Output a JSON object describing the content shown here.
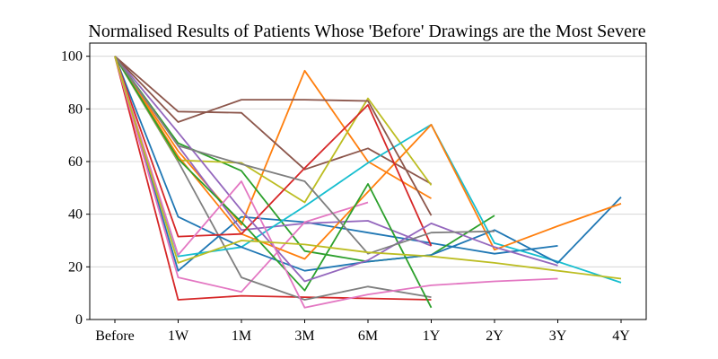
{
  "chart_data": {
    "type": "line",
    "title": "Normalised Results of Patients Whose 'Before' Drawings are the Most Severe",
    "xlabel": "",
    "ylabel": "",
    "categories": [
      "Before",
      "1W",
      "1M",
      "3M",
      "6M",
      "1Y",
      "2Y",
      "3Y",
      "4Y"
    ],
    "ylim": [
      0,
      105
    ],
    "yticks": [
      0,
      20,
      40,
      60,
      80,
      100
    ],
    "grid": "horizontal",
    "legend": "none",
    "series": [
      {
        "color": "#1f77b4",
        "values": [
          100,
          18.5,
          39,
          37,
          33,
          29,
          25,
          28,
          null
        ]
      },
      {
        "color": "#ff7f0e",
        "values": [
          100,
          64,
          36,
          94.5,
          60,
          46,
          null,
          null,
          null
        ]
      },
      {
        "color": "#2ca02c",
        "values": [
          100,
          67,
          56.5,
          26,
          22,
          24.5,
          39.5,
          null,
          null
        ]
      },
      {
        "color": "#d62728",
        "values": [
          100,
          7.5,
          9,
          8.5,
          8,
          7.5,
          null,
          null,
          null
        ]
      },
      {
        "color": "#9467bd",
        "values": [
          100,
          66,
          34,
          36.5,
          37.5,
          28,
          null,
          null,
          null
        ]
      },
      {
        "color": "#8c564b",
        "values": [
          100,
          79,
          78.5,
          57,
          65,
          51.5,
          null,
          null,
          null
        ]
      },
      {
        "color": "#e377c2",
        "values": [
          100,
          16,
          10.5,
          37,
          44.5,
          null,
          null,
          null,
          null
        ]
      },
      {
        "color": "#7f7f7f",
        "values": [
          100,
          60,
          16,
          7.5,
          12.5,
          8.5,
          null,
          null,
          null
        ]
      },
      {
        "color": "#bcbd22",
        "values": [
          100,
          60.5,
          59.5,
          44.5,
          84,
          51,
          null,
          null,
          null
        ]
      },
      {
        "color": "#17becf",
        "values": [
          100,
          24,
          27.5,
          43,
          59.5,
          74,
          29,
          22,
          14
        ]
      },
      {
        "color": "#1f77b4",
        "values": [
          100,
          39,
          27.5,
          18.5,
          22,
          24.5,
          34,
          21.5,
          46.5
        ]
      },
      {
        "color": "#ff7f0e",
        "values": [
          100,
          62,
          32.5,
          23,
          48.5,
          74,
          26.5,
          35.5,
          44
        ]
      },
      {
        "color": "#2ca02c",
        "values": [
          100,
          61,
          37,
          11,
          51.5,
          4.5,
          null,
          null,
          null
        ]
      },
      {
        "color": "#d62728",
        "values": [
          100,
          31.5,
          32.5,
          57.5,
          81.5,
          28,
          null,
          null,
          null
        ]
      },
      {
        "color": "#9467bd",
        "values": [
          100,
          71,
          41.5,
          14.5,
          22.5,
          36.5,
          27.5,
          20.5,
          null
        ]
      },
      {
        "color": "#8c564b",
        "values": [
          100,
          75,
          83.5,
          83.5,
          83,
          39.5,
          null,
          null,
          null
        ]
      },
      {
        "color": "#e377c2",
        "values": [
          100,
          24.5,
          52.5,
          4.5,
          9.5,
          13,
          14.5,
          15.5,
          null
        ]
      },
      {
        "color": "#7f7f7f",
        "values": [
          100,
          66,
          59,
          52.5,
          25,
          33,
          33.5,
          null,
          null
        ]
      },
      {
        "color": "#bcbd22",
        "values": [
          100,
          21.5,
          30,
          28.5,
          25.5,
          24,
          21.5,
          18.5,
          15.5
        ]
      }
    ]
  }
}
